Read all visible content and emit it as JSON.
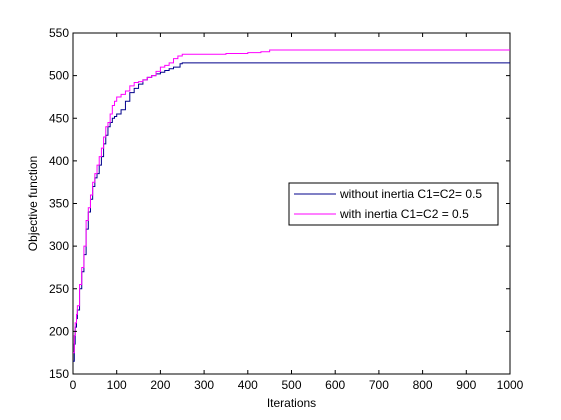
{
  "chart_data": {
    "type": "line",
    "title": "",
    "xlabel": "Iterations",
    "ylabel": "Objective function",
    "xlim": [
      0,
      1000
    ],
    "ylim": [
      150,
      550
    ],
    "xticks": [
      0,
      100,
      200,
      300,
      400,
      500,
      600,
      700,
      800,
      900,
      1000
    ],
    "yticks": [
      150,
      200,
      250,
      300,
      350,
      400,
      450,
      500,
      550
    ],
    "grid": false,
    "legend_position": "center-right",
    "series": [
      {
        "name": "without inertia C1=C2= 0.5",
        "color": "#00008b",
        "x": [
          0,
          3,
          5,
          8,
          10,
          15,
          20,
          25,
          30,
          35,
          40,
          45,
          50,
          55,
          60,
          65,
          70,
          75,
          80,
          85,
          90,
          95,
          100,
          110,
          120,
          130,
          140,
          150,
          160,
          170,
          180,
          190,
          200,
          210,
          220,
          230,
          240,
          245,
          250,
          300,
          400,
          500,
          600,
          700,
          800,
          900,
          1000
        ],
        "y": [
          165,
          185,
          205,
          215,
          225,
          250,
          270,
          290,
          320,
          340,
          355,
          370,
          380,
          385,
          395,
          405,
          420,
          430,
          440,
          445,
          450,
          452,
          455,
          460,
          470,
          480,
          485,
          490,
          495,
          498,
          500,
          502,
          504,
          506,
          508,
          510,
          510,
          514,
          515,
          515,
          515,
          515,
          515,
          515,
          515,
          515,
          515
        ]
      },
      {
        "name": "with inertia C1=C2 = 0.5",
        "color": "#ff00ff",
        "x": [
          0,
          3,
          5,
          8,
          10,
          15,
          20,
          25,
          30,
          35,
          40,
          45,
          50,
          55,
          60,
          65,
          70,
          75,
          80,
          85,
          90,
          95,
          100,
          110,
          120,
          130,
          140,
          150,
          160,
          170,
          180,
          190,
          200,
          210,
          220,
          230,
          240,
          250,
          300,
          350,
          400,
          430,
          450,
          500,
          600,
          700,
          800,
          900,
          1000
        ],
        "y": [
          175,
          195,
          210,
          220,
          230,
          255,
          275,
          300,
          330,
          345,
          360,
          375,
          385,
          395,
          405,
          415,
          428,
          440,
          445,
          455,
          465,
          470,
          475,
          478,
          482,
          488,
          492,
          493,
          495,
          498,
          500,
          505,
          510,
          512,
          515,
          520,
          523,
          525,
          525,
          526,
          527,
          528,
          530,
          530,
          530,
          530,
          530,
          530,
          530
        ]
      }
    ]
  }
}
